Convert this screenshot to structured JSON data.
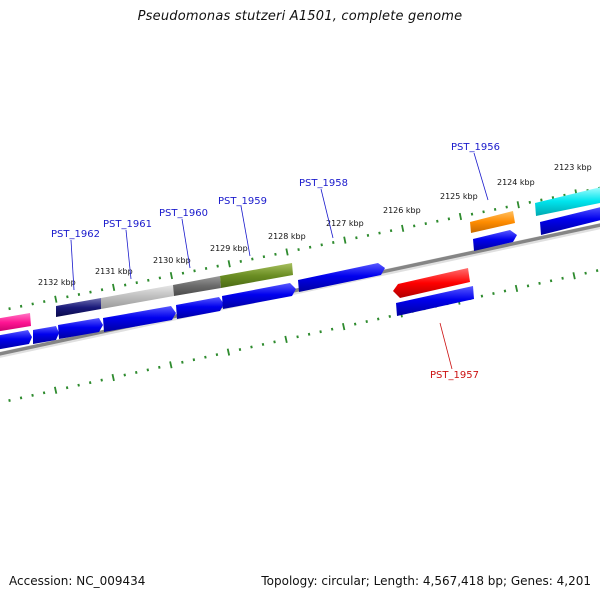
{
  "title": "Pseudomonas stutzeri A1501, complete genome",
  "footer": {
    "accession": "Accession: NC_009434",
    "summary": "Topology: circular; Length: 4,567,418 bp; Genes: 4,201"
  },
  "colors": {
    "backbone": "#8a8a8a",
    "tick": "#2e8b2e",
    "forward_label": "#1a1acc",
    "reverse_label": "#cc1111",
    "cds": "#0000ee"
  },
  "kbp_labels": [
    "2132 kbp",
    "2131 kbp",
    "2130 kbp",
    "2129 kbp",
    "2128 kbp",
    "2127 kbp",
    "2126 kbp",
    "2125 kbp",
    "2124 kbp",
    "2123 kbp"
  ],
  "gene_labels": [
    {
      "text": "PST_1962",
      "strand": "forward"
    },
    {
      "text": "PST_1961",
      "strand": "forward"
    },
    {
      "text": "PST_1960",
      "strand": "forward"
    },
    {
      "text": "PST_1959",
      "strand": "forward"
    },
    {
      "text": "PST_1958",
      "strand": "forward"
    },
    {
      "text": "PST_1956",
      "strand": "forward"
    },
    {
      "text": "PST_1957",
      "strand": "reverse"
    }
  ]
}
